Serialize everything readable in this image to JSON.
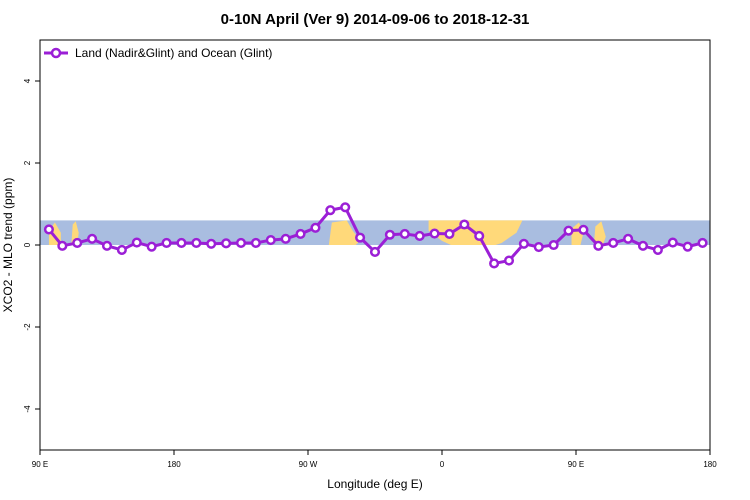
{
  "chart_data": {
    "type": "line",
    "title": "0-10N April (Ver 9)   2014-09-06 to 2018-12-31",
    "xlabel": "Longitude (deg E)",
    "ylabel": "XCO2 - MLO trend (ppm)",
    "xlim": [
      90,
      540
    ],
    "ylim": [
      -5,
      5
    ],
    "x_tick_values": [
      90,
      180,
      270,
      360,
      450,
      540
    ],
    "x_tick_labels": [
      "90 E",
      "180",
      "90 W",
      "0",
      "90 E",
      "180"
    ],
    "y_tick_values": [
      -4,
      -2,
      0,
      2,
      4
    ],
    "y_tick_labels": [
      "-4",
      "-2",
      "0",
      "2",
      "4"
    ],
    "legend_position": "top-left",
    "series": [
      {
        "name": "Land (Nadir&Glint) and Ocean (Glint)",
        "color": "#9b1fd6",
        "x": [
          96,
          105,
          115,
          125,
          135,
          145,
          155,
          165,
          175,
          185,
          195,
          205,
          215,
          225,
          235,
          245,
          255,
          265,
          275,
          285,
          295,
          305,
          315,
          325,
          335,
          345,
          355,
          365,
          375,
          385,
          395,
          405,
          415,
          425,
          435,
          445,
          455,
          465,
          475,
          485,
          495,
          505,
          515,
          525,
          535
        ],
        "values": [
          0.38,
          -0.02,
          0.05,
          0.15,
          -0.02,
          -0.12,
          0.06,
          -0.04,
          0.05,
          0.05,
          0.05,
          0.03,
          0.04,
          0.05,
          0.05,
          0.12,
          0.15,
          0.27,
          0.42,
          0.85,
          0.92,
          0.18,
          -0.17,
          0.25,
          0.27,
          0.22,
          0.28,
          0.27,
          0.5,
          0.22,
          -0.45,
          -0.38,
          0.03,
          -0.05,
          0.0,
          0.35,
          0.37,
          -0.02,
          0.05,
          0.15,
          -0.02,
          -0.12,
          0.06,
          -0.04,
          0.05
        ]
      }
    ],
    "background_map": {
      "lat_band": [
        0,
        10
      ],
      "ocean_color": "#a9bde0",
      "land_color": "#ffd97a"
    }
  }
}
